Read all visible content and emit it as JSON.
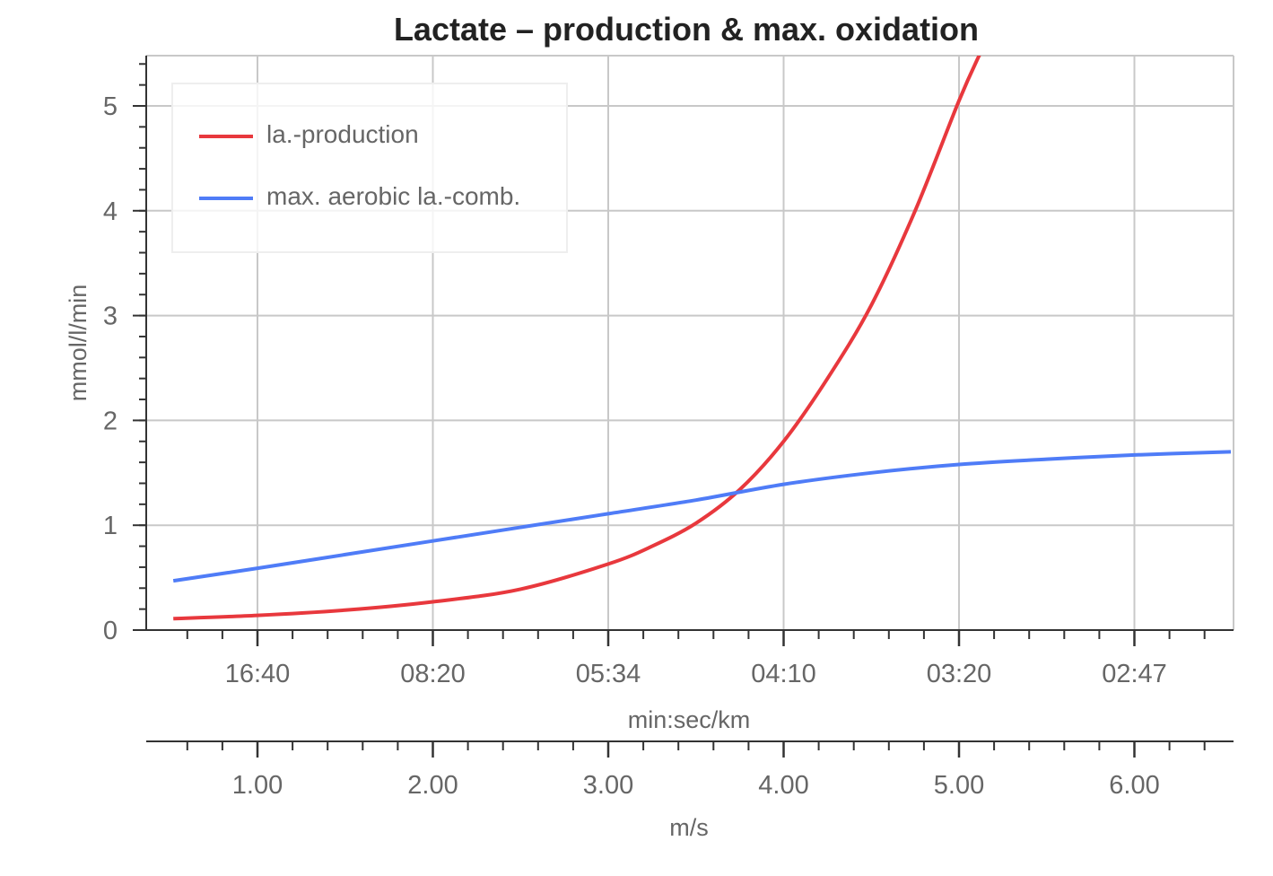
{
  "chart_data": {
    "type": "line",
    "title": "Lactate – production & max. oxidation",
    "ylabel": "mmol/l/min",
    "ylim": [
      0,
      5.5
    ],
    "y_ticks": [
      "0",
      "1",
      "2",
      "3",
      "4",
      "5"
    ],
    "xlim": [
      0.5,
      6.55
    ],
    "x_primary": {
      "label": "min:sec/km",
      "tick_labels": [
        {
          "x": 1,
          "label": "16:40"
        },
        {
          "x": 2,
          "label": "08:20"
        },
        {
          "x": 3,
          "label": "05:34"
        },
        {
          "x": 4,
          "label": "04:10"
        },
        {
          "x": 5,
          "label": "03:20"
        },
        {
          "x": 6,
          "label": "02:47"
        }
      ]
    },
    "x_secondary": {
      "label": "m/s",
      "tick_labels": [
        {
          "x": 1,
          "label": "1.00"
        },
        {
          "x": 2,
          "label": "2.00"
        },
        {
          "x": 3,
          "label": "3.00"
        },
        {
          "x": 4,
          "label": "4.00"
        },
        {
          "x": 5,
          "label": "5.00"
        },
        {
          "x": 6,
          "label": "6.00"
        }
      ]
    },
    "grid": true,
    "legend_position": "top-left",
    "series": [
      {
        "name": "la.-production",
        "color": "#e8383d",
        "points": [
          [
            0.52,
            0.11
          ],
          [
            1.0,
            0.14
          ],
          [
            1.5,
            0.19
          ],
          [
            2.0,
            0.27
          ],
          [
            2.5,
            0.39
          ],
          [
            3.0,
            0.63
          ],
          [
            3.25,
            0.8
          ],
          [
            3.5,
            1.02
          ],
          [
            3.75,
            1.34
          ],
          [
            4.0,
            1.8
          ],
          [
            4.25,
            2.4
          ],
          [
            4.5,
            3.1
          ],
          [
            4.75,
            4.0
          ],
          [
            5.0,
            5.05
          ],
          [
            5.12,
            5.5
          ]
        ]
      },
      {
        "name": "max. aerobic la.-comb.",
        "color": "#4f7cf7",
        "points": [
          [
            0.52,
            0.47
          ],
          [
            1.0,
            0.59
          ],
          [
            1.5,
            0.72
          ],
          [
            2.0,
            0.85
          ],
          [
            2.5,
            0.98
          ],
          [
            3.0,
            1.11
          ],
          [
            3.5,
            1.24
          ],
          [
            4.0,
            1.39
          ],
          [
            4.5,
            1.5
          ],
          [
            5.0,
            1.58
          ],
          [
            5.5,
            1.63
          ],
          [
            6.0,
            1.67
          ],
          [
            6.55,
            1.7
          ]
        ]
      }
    ]
  }
}
